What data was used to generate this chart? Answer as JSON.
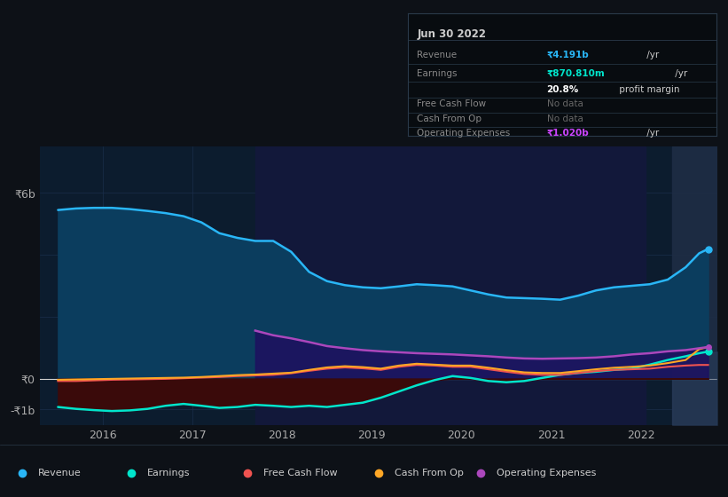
{
  "bg_color": "#0d1117",
  "plot_bg_color": "#0c1c2e",
  "grid_color": "#1a2e4a",
  "zero_line_color": "#d0d0d0",
  "title_box": {
    "date": "Jun 30 2022",
    "bg": "#080c10",
    "border": "#2a3a4a",
    "text_color": "#888888",
    "bold_color": "#cccccc"
  },
  "legend_items": [
    {
      "label": "Revenue",
      "color": "#29b6f6"
    },
    {
      "label": "Earnings",
      "color": "#00e5cc"
    },
    {
      "label": "Free Cash Flow",
      "color": "#ef5350"
    },
    {
      "label": "Cash From Op",
      "color": "#ffa726"
    },
    {
      "label": "Operating Expenses",
      "color": "#ab47bc"
    }
  ],
  "ylim": [
    -1500000000.0,
    7500000000.0
  ],
  "xlim": [
    2015.3,
    2022.85
  ],
  "xticks": [
    2016,
    2017,
    2018,
    2019,
    2020,
    2021,
    2022
  ],
  "revenue": {
    "x": [
      2015.5,
      2015.7,
      2015.9,
      2016.1,
      2016.3,
      2016.5,
      2016.7,
      2016.9,
      2017.1,
      2017.3,
      2017.5,
      2017.7,
      2017.9,
      2018.1,
      2018.3,
      2018.5,
      2018.7,
      2018.9,
      2019.1,
      2019.3,
      2019.5,
      2019.7,
      2019.9,
      2020.1,
      2020.3,
      2020.5,
      2020.7,
      2020.9,
      2021.1,
      2021.3,
      2021.5,
      2021.7,
      2021.9,
      2022.1,
      2022.3,
      2022.5,
      2022.65,
      2022.75
    ],
    "y": [
      5450000000.0,
      5500000000.0,
      5520000000.0,
      5520000000.0,
      5480000000.0,
      5420000000.0,
      5350000000.0,
      5250000000.0,
      5050000000.0,
      4700000000.0,
      4550000000.0,
      4450000000.0,
      4450000000.0,
      4100000000.0,
      3450000000.0,
      3150000000.0,
      3020000000.0,
      2950000000.0,
      2920000000.0,
      2980000000.0,
      3050000000.0,
      3020000000.0,
      2980000000.0,
      2850000000.0,
      2720000000.0,
      2620000000.0,
      2600000000.0,
      2580000000.0,
      2550000000.0,
      2680000000.0,
      2850000000.0,
      2950000000.0,
      3000000000.0,
      3050000000.0,
      3200000000.0,
      3600000000.0,
      4050000000.0,
      4190000000.0
    ],
    "color": "#29b6f6",
    "fill_color": "#0a3550",
    "linewidth": 1.8
  },
  "earnings": {
    "x": [
      2015.5,
      2015.7,
      2015.9,
      2016.1,
      2016.3,
      2016.5,
      2016.7,
      2016.9,
      2017.1,
      2017.3,
      2017.5,
      2017.7,
      2017.9,
      2018.1,
      2018.3,
      2018.5,
      2018.7,
      2018.9,
      2019.1,
      2019.3,
      2019.5,
      2019.7,
      2019.9,
      2020.1,
      2020.3,
      2020.5,
      2020.7,
      2020.9,
      2021.1,
      2021.3,
      2021.5,
      2021.7,
      2021.9,
      2022.1,
      2022.3,
      2022.5,
      2022.65,
      2022.75
    ],
    "y": [
      -920000000.0,
      -980000000.0,
      -1020000000.0,
      -1050000000.0,
      -1030000000.0,
      -980000000.0,
      -880000000.0,
      -820000000.0,
      -880000000.0,
      -950000000.0,
      -920000000.0,
      -850000000.0,
      -880000000.0,
      -920000000.0,
      -880000000.0,
      -920000000.0,
      -850000000.0,
      -780000000.0,
      -620000000.0,
      -420000000.0,
      -220000000.0,
      -50000000.0,
      80000000.0,
      20000000.0,
      -80000000.0,
      -120000000.0,
      -80000000.0,
      20000000.0,
      120000000.0,
      180000000.0,
      220000000.0,
      280000000.0,
      320000000.0,
      450000000.0,
      600000000.0,
      720000000.0,
      820000000.0,
      870000000.0
    ],
    "color": "#00e5cc",
    "linewidth": 1.8
  },
  "free_cash_flow": {
    "x": [
      2015.5,
      2015.7,
      2015.9,
      2016.1,
      2016.3,
      2016.5,
      2016.7,
      2016.9,
      2017.1,
      2017.3,
      2017.5,
      2017.7,
      2017.9,
      2018.1,
      2018.3,
      2018.5,
      2018.7,
      2018.9,
      2019.1,
      2019.3,
      2019.5,
      2019.7,
      2019.9,
      2020.1,
      2020.3,
      2020.5,
      2020.7,
      2020.9,
      2021.1,
      2021.3,
      2021.5,
      2021.7,
      2021.9,
      2022.1,
      2022.3,
      2022.5,
      2022.65,
      2022.75
    ],
    "y": [
      -80000000.0,
      -80000000.0,
      -60000000.0,
      -40000000.0,
      -30000000.0,
      -20000000.0,
      -10000000.0,
      10000000.0,
      30000000.0,
      50000000.0,
      80000000.0,
      100000000.0,
      120000000.0,
      170000000.0,
      250000000.0,
      320000000.0,
      360000000.0,
      330000000.0,
      280000000.0,
      380000000.0,
      440000000.0,
      420000000.0,
      380000000.0,
      380000000.0,
      300000000.0,
      220000000.0,
      150000000.0,
      120000000.0,
      120000000.0,
      180000000.0,
      240000000.0,
      280000000.0,
      300000000.0,
      320000000.0,
      380000000.0,
      420000000.0,
      440000000.0,
      440000000.0
    ],
    "color": "#ef5350",
    "linewidth": 1.5
  },
  "cash_from_op": {
    "x": [
      2015.5,
      2015.7,
      2015.9,
      2016.1,
      2016.3,
      2016.5,
      2016.7,
      2016.9,
      2017.1,
      2017.3,
      2017.5,
      2017.7,
      2017.9,
      2018.1,
      2018.3,
      2018.5,
      2018.7,
      2018.9,
      2019.1,
      2019.3,
      2019.5,
      2019.7,
      2019.9,
      2020.1,
      2020.3,
      2020.5,
      2020.7,
      2020.9,
      2021.1,
      2021.3,
      2021.5,
      2021.7,
      2021.9,
      2022.1,
      2022.3,
      2022.5,
      2022.65,
      2022.75
    ],
    "y": [
      -40000000.0,
      -30000000.0,
      -20000000.0,
      -10000000.0,
      0.0,
      10000000.0,
      20000000.0,
      30000000.0,
      50000000.0,
      80000000.0,
      110000000.0,
      130000000.0,
      160000000.0,
      190000000.0,
      280000000.0,
      360000000.0,
      400000000.0,
      370000000.0,
      320000000.0,
      420000000.0,
      480000000.0,
      450000000.0,
      420000000.0,
      420000000.0,
      350000000.0,
      270000000.0,
      200000000.0,
      180000000.0,
      180000000.0,
      240000000.0,
      300000000.0,
      350000000.0,
      380000000.0,
      420000000.0,
      500000000.0,
      600000000.0,
      950000000.0,
      1020000000.0
    ],
    "color": "#ffa726",
    "linewidth": 1.5
  },
  "op_expenses": {
    "x": [
      2017.7,
      2017.9,
      2018.1,
      2018.3,
      2018.5,
      2018.7,
      2018.9,
      2019.1,
      2019.3,
      2019.5,
      2019.7,
      2019.9,
      2020.1,
      2020.3,
      2020.5,
      2020.7,
      2020.9,
      2021.1,
      2021.3,
      2021.5,
      2021.7,
      2021.9,
      2022.1,
      2022.3,
      2022.5,
      2022.65,
      2022.75
    ],
    "y": [
      1550000000.0,
      1400000000.0,
      1300000000.0,
      1180000000.0,
      1050000000.0,
      980000000.0,
      920000000.0,
      880000000.0,
      850000000.0,
      820000000.0,
      800000000.0,
      780000000.0,
      750000000.0,
      720000000.0,
      680000000.0,
      650000000.0,
      640000000.0,
      650000000.0,
      660000000.0,
      680000000.0,
      720000000.0,
      780000000.0,
      820000000.0,
      880000000.0,
      920000000.0,
      980000000.0,
      1020000000.0
    ],
    "color": "#ab47bc",
    "linewidth": 1.8
  }
}
